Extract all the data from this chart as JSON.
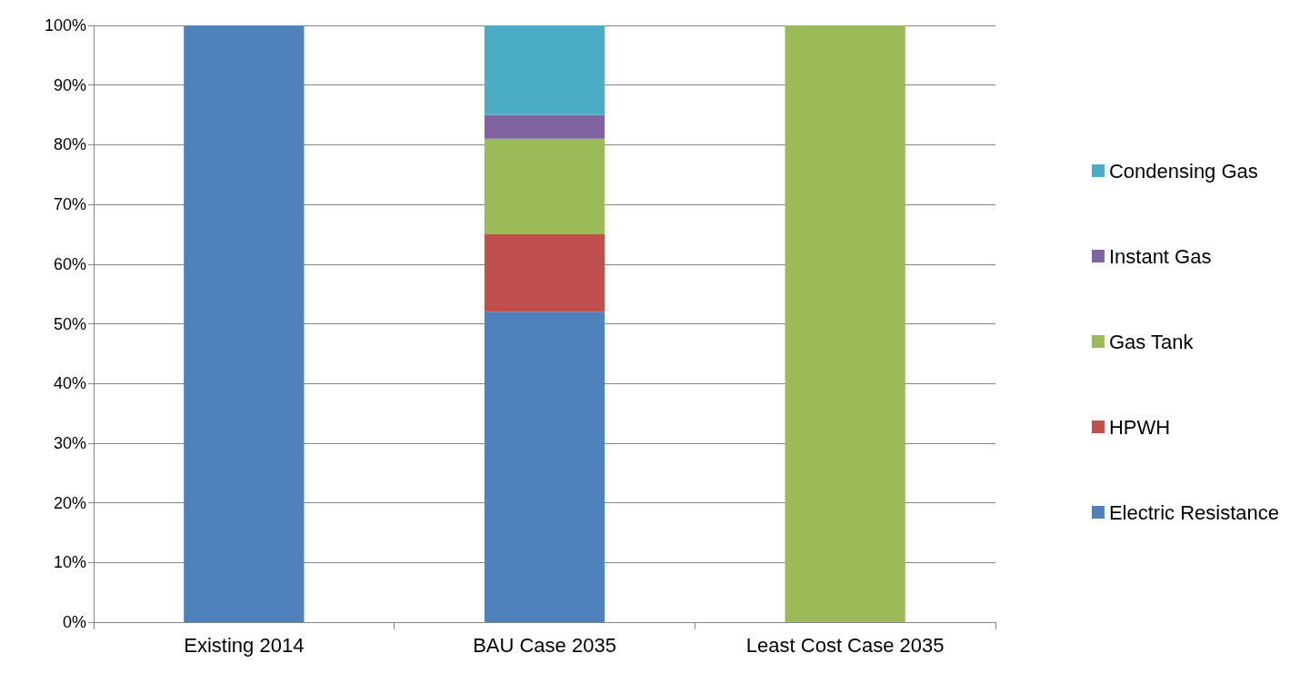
{
  "chart_data": {
    "type": "bar",
    "stacked": true,
    "categories": [
      "Existing 2014",
      "BAU Case 2035",
      "Least Cost Case 2035"
    ],
    "series": [
      {
        "name": "Electric Resistance",
        "color": "#4f81bd",
        "values": [
          100,
          52,
          0
        ]
      },
      {
        "name": "HPWH",
        "color": "#c0504d",
        "values": [
          0,
          13,
          0
        ]
      },
      {
        "name": "Gas Tank",
        "color": "#9bbb59",
        "values": [
          0,
          16,
          100
        ]
      },
      {
        "name": "Instant Gas",
        "color": "#8064a2",
        "values": [
          0,
          4,
          0
        ]
      },
      {
        "name": "Condensing Gas",
        "color": "#4bacc6",
        "values": [
          0,
          15,
          0
        ]
      }
    ],
    "ylim": [
      0,
      100
    ],
    "yticks": [
      {
        "value": 0,
        "label": "0%"
      },
      {
        "value": 10,
        "label": "10%"
      },
      {
        "value": 20,
        "label": "20%"
      },
      {
        "value": 30,
        "label": "30%"
      },
      {
        "value": 40,
        "label": "40%"
      },
      {
        "value": 50,
        "label": "50%"
      },
      {
        "value": 60,
        "label": "60%"
      },
      {
        "value": 70,
        "label": "70%"
      },
      {
        "value": 80,
        "label": "80%"
      },
      {
        "value": 90,
        "label": "90%"
      },
      {
        "value": 100,
        "label": "100%"
      }
    ],
    "grid": "y",
    "legend": "right"
  }
}
